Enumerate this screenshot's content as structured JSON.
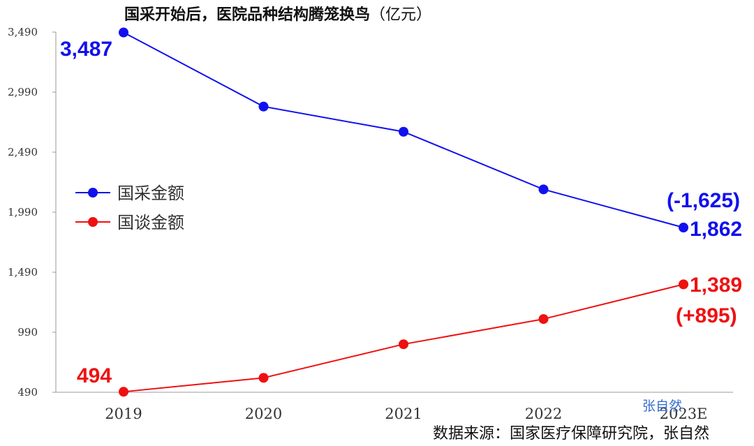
{
  "chart_data": {
    "type": "line",
    "title": "国采开始后，医院品种结构腾笼换鸟",
    "title_unit": "（亿元）",
    "categories": [
      "2019",
      "2020",
      "2021",
      "2022",
      "2023E"
    ],
    "ylim": [
      490,
      3490
    ],
    "yticks": [
      "3,490",
      "2,990",
      "2,490",
      "1,990",
      "1,490",
      "990",
      "490"
    ],
    "ytick_values": [
      3490,
      2990,
      2490,
      1990,
      1490,
      990,
      490
    ],
    "grid": false,
    "legend_position": "left-middle",
    "series": [
      {
        "name": "国采金额",
        "color": "#1111ee",
        "values": [
          3487,
          2870,
          2660,
          2180,
          1862
        ]
      },
      {
        "name": "国谈金额",
        "color": "#ee1111",
        "values": [
          494,
          610,
          890,
          1100,
          1389
        ]
      }
    ],
    "annotations": {
      "gc_start": "3,487",
      "gc_end": "1,862",
      "gc_change": "(-1,625)",
      "gt_start": "494",
      "gt_end": "1,389",
      "gt_change": "(+895)"
    }
  },
  "source": "数据来源：国家医疗保障研究院，张自然",
  "watermark": "张自然"
}
